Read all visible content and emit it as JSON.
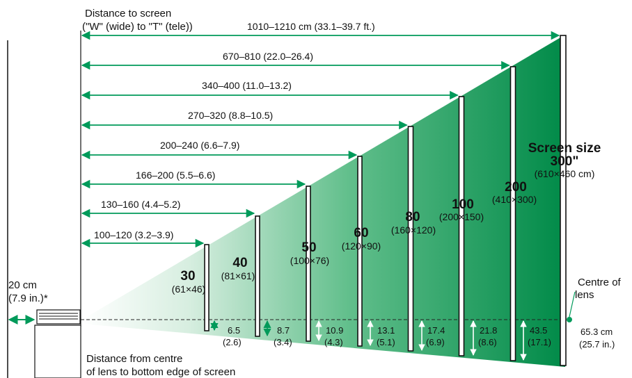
{
  "header": {
    "line1": "Distance to screen",
    "line2": "(\"W\" (wide) to \"T\" (tele))"
  },
  "wall_clearance": {
    "line1": "20 cm",
    "line2": "(7.9 in.)*"
  },
  "footer": {
    "line1": "Distance from centre",
    "line2": "of lens to bottom edge of screen"
  },
  "lens_label": {
    "line1": "Centre of",
    "line2": "lens"
  },
  "screen_size_title": "Screen size",
  "colors": {
    "arrow": "#009a5a",
    "beam_dark": "#008c4a",
    "beam_light": "#d8efe2"
  },
  "screens": [
    {
      "size": "30",
      "dims": "(61×46)",
      "distance": "100–120 (3.2–3.9)",
      "offset": "6.5",
      "offset_in": "(2.6)"
    },
    {
      "size": "40",
      "dims": "(81×61)",
      "distance": "130–160 (4.4–5.2)",
      "offset": "8.7",
      "offset_in": "(3.4)"
    },
    {
      "size": "50",
      "dims": "(100×76)",
      "distance": "166–200 (5.5–6.6)",
      "offset": "10.9",
      "offset_in": "(4.3)"
    },
    {
      "size": "60",
      "dims": "(120×90)",
      "distance": "200–240 (6.6–7.9)",
      "offset": "13.1",
      "offset_in": "(5.1)"
    },
    {
      "size": "80",
      "dims": "(160×120)",
      "distance": "270–320 (8.8–10.5)",
      "offset": "17.4",
      "offset_in": "(6.9)"
    },
    {
      "size": "100",
      "dims": "(200×150)",
      "distance": "340–400 (11.0–13.2)",
      "offset": "21.8",
      "offset_in": "(8.6)"
    },
    {
      "size": "200",
      "dims": "(410×300)",
      "distance": "670–810 (22.0–26.4)",
      "offset": "43.5",
      "offset_in": "(17.1)"
    },
    {
      "size": "300\"",
      "dims": "(610×460 cm)",
      "distance": "1010–1210 cm (33.1–39.7 ft.)",
      "offset": "65.3 cm",
      "offset_in": "(25.7 in.)"
    }
  ]
}
